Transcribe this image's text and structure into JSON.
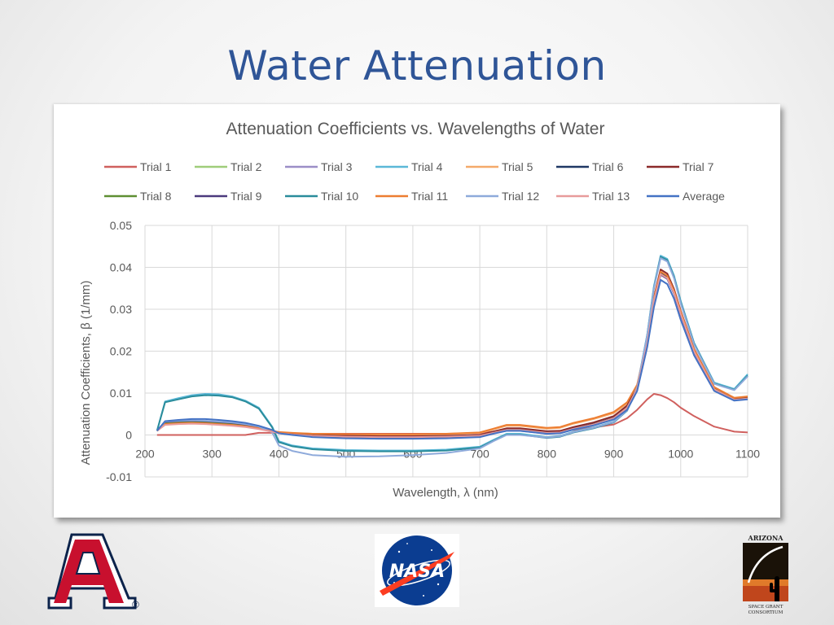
{
  "slide": {
    "title": "Water Attenuation"
  },
  "chart_data": {
    "type": "line",
    "title": "Attenuation Coefficients vs. Wavelengths of Water",
    "xlabel": "Wavelength, λ (nm)",
    "ylabel": "Attenuation Coefficients, β (1/mm)",
    "xlim": [
      200,
      1100
    ],
    "ylim": [
      -0.01,
      0.05
    ],
    "xticks": [
      200,
      300,
      400,
      500,
      600,
      700,
      800,
      900,
      1000,
      1100
    ],
    "xtick_labels": [
      "200",
      "300",
      "400",
      "500",
      "600",
      "700",
      "800",
      "900",
      "1000",
      "1100"
    ],
    "yticks": [
      -0.01,
      0,
      0.01,
      0.02,
      0.03,
      0.04,
      0.05
    ],
    "ytick_labels": [
      "-0.01",
      "0",
      "0.01",
      "0.02",
      "0.03",
      "0.04",
      "0.05"
    ],
    "grid": true,
    "legend_position": "top",
    "x": [
      218,
      230,
      250,
      270,
      290,
      310,
      330,
      350,
      370,
      390,
      400,
      420,
      450,
      500,
      550,
      600,
      650,
      700,
      720,
      740,
      760,
      800,
      820,
      840,
      870,
      900,
      920,
      935,
      950,
      960,
      970,
      980,
      990,
      1000,
      1020,
      1050,
      1080,
      1100
    ],
    "series": [
      {
        "name": "Trial 1",
        "color": "#d0605e",
        "values": [
          0,
          0,
          0,
          0,
          0,
          0,
          0,
          0,
          0.0005,
          0.0005,
          0.0005,
          0.0004,
          0.0003,
          0.0003,
          0.0003,
          0.0003,
          0.0003,
          0.0004,
          0.0008,
          0.0012,
          0.0012,
          0.0008,
          0.0009,
          0.0012,
          0.0018,
          0.0025,
          0.004,
          0.006,
          0.0085,
          0.0098,
          0.0095,
          0.0088,
          0.0078,
          0.0065,
          0.0045,
          0.002,
          0.0008,
          0.0006
        ]
      },
      {
        "name": "Trial 2",
        "color": "#9fcd7a",
        "values": [
          0.001,
          0.003,
          0.0032,
          0.0033,
          0.0032,
          0.003,
          0.0028,
          0.0024,
          0.0018,
          0.001,
          0.0005,
          0.0002,
          -0.0002,
          -0.0004,
          -0.0005,
          -0.0005,
          -0.0004,
          -0.0002,
          0.0005,
          0.0012,
          0.0012,
          0.0005,
          0.0006,
          0.0015,
          0.0025,
          0.004,
          0.0065,
          0.011,
          0.022,
          0.032,
          0.0385,
          0.0375,
          0.034,
          0.029,
          0.02,
          0.011,
          0.0085,
          0.0088
        ]
      },
      {
        "name": "Trial 3",
        "color": "#9b8ec7",
        "values": [
          0.001,
          0.0027,
          0.0029,
          0.003,
          0.0029,
          0.0027,
          0.0025,
          0.0021,
          0.0016,
          0.0009,
          0.0004,
          0.0001,
          -0.0003,
          -0.0005,
          -0.0006,
          -0.0006,
          -0.0005,
          -0.0003,
          0.0004,
          0.001,
          0.001,
          0.0003,
          0.0004,
          0.0013,
          0.0023,
          0.0038,
          0.0063,
          0.0108,
          0.0218,
          0.0318,
          0.0382,
          0.0372,
          0.0337,
          0.0287,
          0.0198,
          0.0108,
          0.0083,
          0.0086
        ]
      },
      {
        "name": "Trial 4",
        "color": "#5bb8d8",
        "values": [
          0.001,
          0.008,
          0.0088,
          0.0095,
          0.0098,
          0.0097,
          0.0092,
          0.0082,
          0.0065,
          0.002,
          -0.0015,
          -0.0025,
          -0.0032,
          -0.0036,
          -0.0037,
          -0.0037,
          -0.0035,
          -0.0028,
          -0.0012,
          0.0003,
          0.0003,
          -0.0005,
          -0.0002,
          0.0008,
          0.0018,
          0.0032,
          0.006,
          0.0115,
          0.024,
          0.0355,
          0.0428,
          0.042,
          0.038,
          0.032,
          0.022,
          0.0125,
          0.011,
          0.0145
        ]
      },
      {
        "name": "Trial 5",
        "color": "#f4a96a",
        "values": [
          0.001,
          0.0025,
          0.0027,
          0.0028,
          0.0027,
          0.0025,
          0.0023,
          0.002,
          0.0015,
          0.0009,
          0.0006,
          0.0004,
          0.0002,
          0.0001,
          0.0001,
          0.0001,
          0.0002,
          0.0005,
          0.0013,
          0.0022,
          0.0022,
          0.0015,
          0.0017,
          0.0027,
          0.0038,
          0.0052,
          0.0075,
          0.0118,
          0.0225,
          0.0322,
          0.0388,
          0.0378,
          0.0342,
          0.0292,
          0.0202,
          0.0112,
          0.0087,
          0.009
        ]
      },
      {
        "name": "Trial 6",
        "color": "#1f3864",
        "values": [
          0.001,
          0.0028,
          0.003,
          0.0031,
          0.003,
          0.0028,
          0.0026,
          0.0022,
          0.0017,
          0.001,
          0.0005,
          0.0002,
          -0.0002,
          -0.0004,
          -0.0005,
          -0.0005,
          -0.0004,
          -0.0002,
          0.0006,
          0.0013,
          0.0013,
          0.0006,
          0.0007,
          0.0016,
          0.0026,
          0.0041,
          0.0066,
          0.0111,
          0.0221,
          0.0321,
          0.0386,
          0.0376,
          0.0341,
          0.0291,
          0.0201,
          0.0111,
          0.0086,
          0.0089
        ]
      },
      {
        "name": "Trial 7",
        "color": "#8b2a2a",
        "values": [
          0.001,
          0.0027,
          0.0029,
          0.003,
          0.0029,
          0.0027,
          0.0025,
          0.0021,
          0.0016,
          0.001,
          0.0006,
          0.0003,
          0,
          -0.0002,
          -0.0003,
          -0.0003,
          -0.0002,
          0,
          0.0008,
          0.0016,
          0.0016,
          0.0009,
          0.001,
          0.0019,
          0.003,
          0.0045,
          0.007,
          0.0115,
          0.0228,
          0.0328,
          0.0395,
          0.0385,
          0.0348,
          0.0296,
          0.0205,
          0.0114,
          0.0088,
          0.0091
        ]
      },
      {
        "name": "Trial 8",
        "color": "#5e8f32",
        "values": [
          0.001,
          0.0029,
          0.0031,
          0.0032,
          0.0031,
          0.0029,
          0.0027,
          0.0023,
          0.0017,
          0.001,
          0.0005,
          0.0002,
          -0.0002,
          -0.0004,
          -0.0005,
          -0.0005,
          -0.0004,
          -0.0002,
          0.0005,
          0.0012,
          0.0012,
          0.0005,
          0.0006,
          0.0015,
          0.0025,
          0.004,
          0.0065,
          0.011,
          0.022,
          0.032,
          0.0384,
          0.0374,
          0.0339,
          0.0289,
          0.0199,
          0.0109,
          0.0084,
          0.0087
        ]
      },
      {
        "name": "Trial 9",
        "color": "#4b3a7d",
        "values": [
          0.001,
          0.0031,
          0.0033,
          0.0034,
          0.0033,
          0.0031,
          0.0029,
          0.0025,
          0.0019,
          0.0011,
          0.0005,
          0.0002,
          -0.0002,
          -0.0004,
          -0.0005,
          -0.0005,
          -0.0004,
          -0.0002,
          0.0005,
          0.0012,
          0.0012,
          0.0005,
          0.0006,
          0.0015,
          0.0025,
          0.004,
          0.0065,
          0.011,
          0.022,
          0.032,
          0.0383,
          0.0373,
          0.0338,
          0.0288,
          0.0198,
          0.0108,
          0.0083,
          0.0086
        ]
      },
      {
        "name": "Trial 10",
        "color": "#2a8c9b",
        "values": [
          0.001,
          0.0078,
          0.0085,
          0.0092,
          0.0095,
          0.0094,
          0.009,
          0.008,
          0.0063,
          0.0018,
          -0.0017,
          -0.0027,
          -0.0034,
          -0.0038,
          -0.0039,
          -0.0039,
          -0.0037,
          -0.003,
          -0.0014,
          0.0001,
          0.0001,
          -0.0007,
          -0.0004,
          0.0006,
          0.0016,
          0.003,
          0.0058,
          0.0113,
          0.0238,
          0.0352,
          0.0425,
          0.0417,
          0.0377,
          0.0317,
          0.0218,
          0.0123,
          0.0108,
          0.0142
        ]
      },
      {
        "name": "Trial 11",
        "color": "#ed7d31",
        "values": [
          0.001,
          0.0026,
          0.0028,
          0.0029,
          0.0028,
          0.0026,
          0.0024,
          0.0021,
          0.0016,
          0.001,
          0.0007,
          0.0005,
          0.0003,
          0.0002,
          0.0002,
          0.0002,
          0.0003,
          0.0006,
          0.0015,
          0.0024,
          0.0024,
          0.0017,
          0.0019,
          0.0029,
          0.004,
          0.0055,
          0.0078,
          0.012,
          0.0228,
          0.0325,
          0.039,
          0.038,
          0.0344,
          0.0294,
          0.0204,
          0.0114,
          0.0089,
          0.0092
        ]
      },
      {
        "name": "Trial 12",
        "color": "#8eaadb",
        "values": [
          0.001,
          0.0032,
          0.0034,
          0.0035,
          0.0034,
          0.0032,
          0.003,
          0.0026,
          0.002,
          0.0006,
          -0.0025,
          -0.0038,
          -0.0048,
          -0.0052,
          -0.0051,
          -0.0048,
          -0.0043,
          -0.0032,
          -0.0015,
          0,
          0,
          -0.0006,
          -0.0003,
          0.0007,
          0.0017,
          0.0031,
          0.0059,
          0.0114,
          0.0238,
          0.035,
          0.0422,
          0.0414,
          0.0374,
          0.0314,
          0.0216,
          0.0122,
          0.0107,
          0.014
        ]
      },
      {
        "name": "Trial 13",
        "color": "#e89b9b",
        "values": [
          0.001,
          0.0024,
          0.0026,
          0.0027,
          0.0026,
          0.0024,
          0.0022,
          0.0019,
          0.0014,
          0.0008,
          0.0004,
          0.0001,
          -0.0002,
          -0.0004,
          -0.0005,
          -0.0005,
          -0.0004,
          -0.0002,
          0.0005,
          0.0012,
          0.0012,
          0.0005,
          0.0006,
          0.0015,
          0.0025,
          0.004,
          0.0065,
          0.011,
          0.022,
          0.032,
          0.0384,
          0.0374,
          0.0339,
          0.0289,
          0.0199,
          0.0109,
          0.0084,
          0.0087
        ]
      },
      {
        "name": "Average",
        "color": "#4472c4",
        "values": [
          0.001,
          0.0033,
          0.0036,
          0.0038,
          0.0038,
          0.0036,
          0.0033,
          0.0029,
          0.0022,
          0.0012,
          0.0004,
          0,
          -0.0005,
          -0.0008,
          -0.0009,
          -0.0009,
          -0.0008,
          -0.0005,
          0.0003,
          0.001,
          0.001,
          0.0003,
          0.0004,
          0.0013,
          0.0023,
          0.0037,
          0.006,
          0.0105,
          0.021,
          0.0305,
          0.037,
          0.036,
          0.0325,
          0.0275,
          0.019,
          0.0105,
          0.0082,
          0.0085
        ]
      }
    ]
  },
  "logos": {
    "ua": {
      "letter": "A",
      "registered": "®"
    },
    "nasa": {
      "text": "NASA"
    },
    "asgc": {
      "top": "ARIZONA",
      "line1": "SPACE GRANT",
      "line2": "CONSORTIUM"
    }
  },
  "colors": {
    "title": "#2f5597",
    "text": "#595959",
    "grid": "#d9d9d9",
    "ua_red": "#c8102e",
    "ua_blue": "#0c234b",
    "nasa_blue": "#0b3d91"
  }
}
